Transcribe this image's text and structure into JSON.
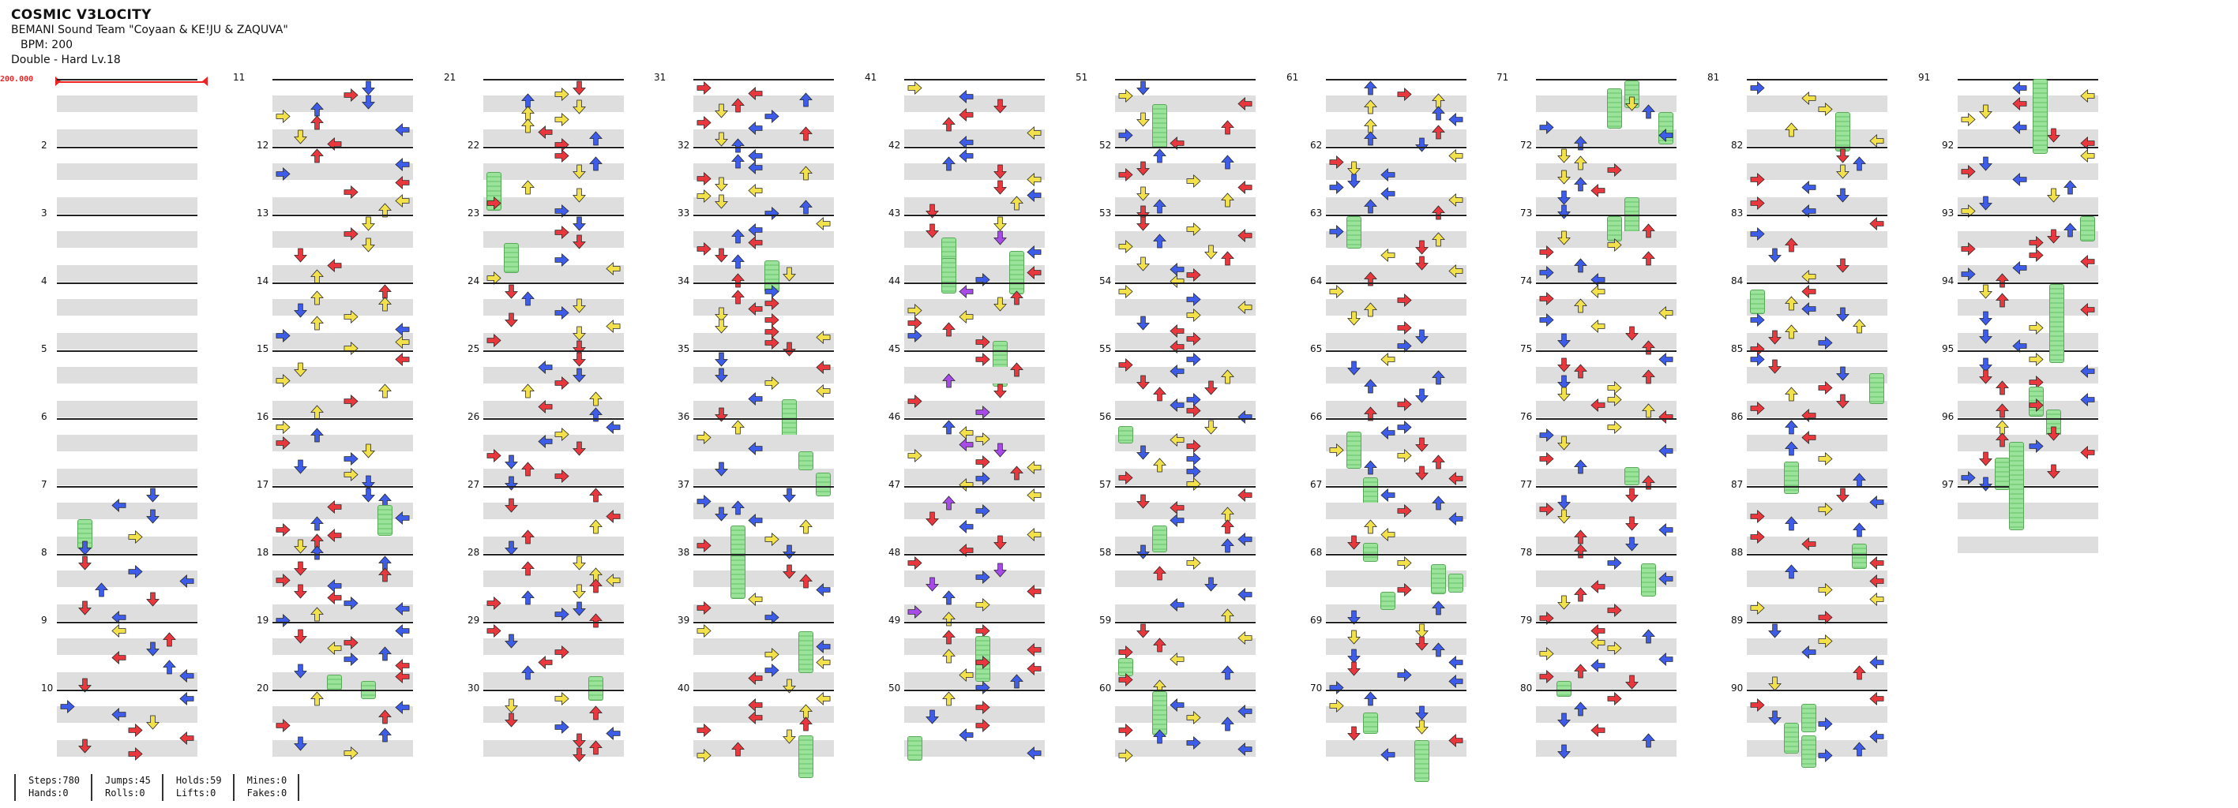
{
  "song": {
    "title": "COSMIC V3LOCITY",
    "artist": "BEMANI Sound Team \"Coyaan & KE!JU & ZAQUVA\"",
    "bpm": "BPM: 200",
    "chart": "Double - Hard  Lv.18"
  },
  "bpm_marker": {
    "label": "200.000"
  },
  "measure_count": 97,
  "measures_per_column": 10,
  "colors": {
    "quarter": "#e8383d",
    "eighth": "#3d5ce8",
    "sixteenth": "#f2e14a",
    "twelfth": "#a64ae8",
    "hold": "#8fdc8f",
    "stripe": "#dedede"
  },
  "stats": {
    "steps": "Steps:780",
    "hands": "Hands:0",
    "jumps": "Jumps:45",
    "rolls": "Rolls:0",
    "holds": "Holds:59",
    "lifts": "Lifts:0",
    "mines": "Mines:0",
    "fakes": "Fakes:0"
  }
}
